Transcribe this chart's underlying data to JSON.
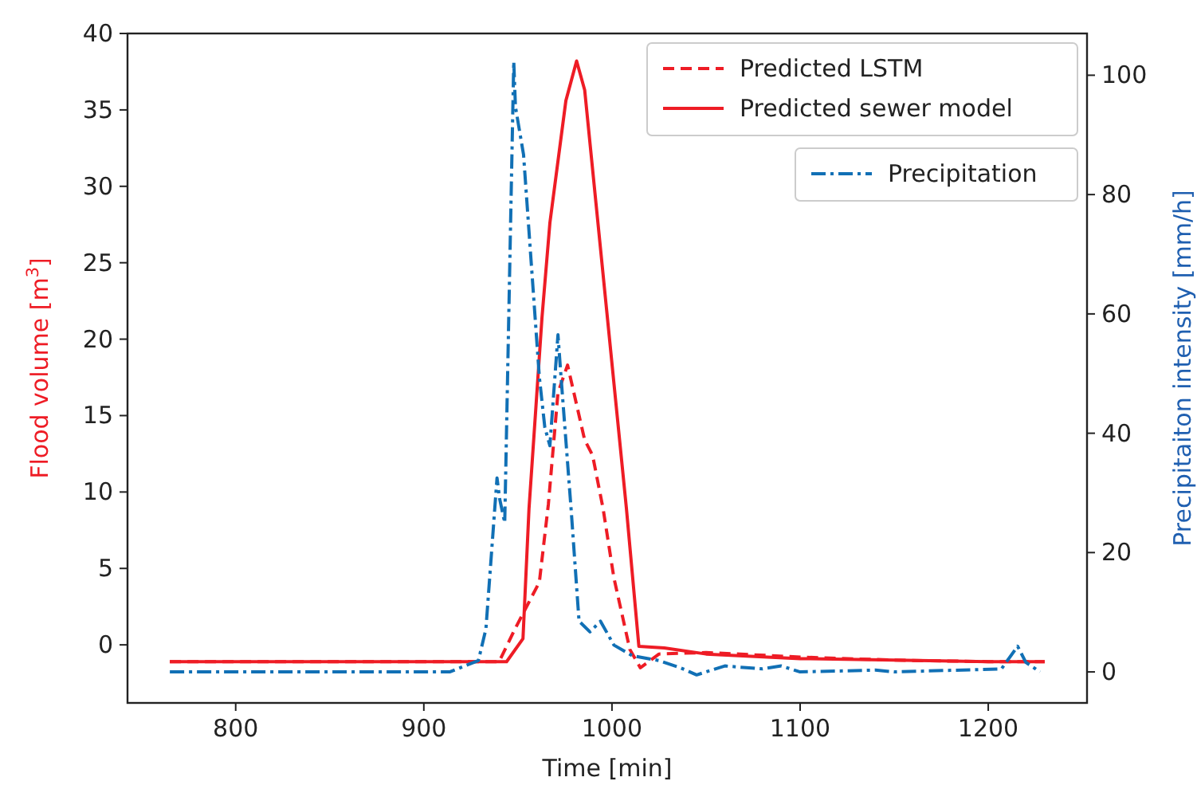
{
  "chart_data": {
    "type": "line",
    "xlabel": "Time [min]",
    "ylabel": "Flood volume [m$^{3}$]",
    "y2label": "Precipitaiton intensity [mm/h]",
    "xlim": [
      742.5,
      1252.5
    ],
    "xticks": [
      800,
      900,
      1000,
      1100,
      1200
    ],
    "ylim": [
      -3.8,
      40
    ],
    "yticks": [
      0,
      5,
      10,
      15,
      20,
      25,
      30,
      35,
      40
    ],
    "y2lim": [
      -5.2,
      107
    ],
    "y2ticks": [
      0,
      20,
      40,
      60,
      80,
      100
    ],
    "grid": false,
    "legend": "top right",
    "series": [
      {
        "name": "Predicted LSTM",
        "color": "#ee1c25",
        "line_style": "dashed",
        "x": [
          765,
          850,
          900,
          940,
          948.7,
          961.4,
          966.2,
          971.3,
          976.4,
          985.5,
          989.7,
          995.3,
          1001,
          1009.5,
          1015.1,
          1025,
          1050,
          1100,
          1150,
          1200,
          1230
        ],
        "values": [
          -1.1,
          -1.1,
          -1.1,
          -1.1,
          1.1,
          4.1,
          9.2,
          16.5,
          18.3,
          13.4,
          12.4,
          8.9,
          4.4,
          -0.3,
          -1.5,
          -0.6,
          -0.5,
          -0.8,
          -1.0,
          -1.1,
          -1.1
        ]
      },
      {
        "name": "Predicted sewer model",
        "color": "#ee1c25",
        "line_style": "solid",
        "x": [
          765,
          850,
          900,
          944,
          952.7,
          955.9,
          962.8,
          967,
          975.5,
          981.2,
          985.5,
          1007.7,
          1014.3,
          1027.8,
          1050,
          1100,
          1150,
          1200,
          1230
        ],
        "values": [
          -1.1,
          -1.1,
          -1.1,
          -1.1,
          0.4,
          8.9,
          21.4,
          27.6,
          35.6,
          38.2,
          36.3,
          8.9,
          -0.1,
          -0.2,
          -0.6,
          -0.9,
          -1.0,
          -1.1,
          -1.1
        ]
      },
      {
        "name": "Precipitation",
        "color": "#1170b5",
        "line_style": "dotted",
        "axis": "y2",
        "x": [
          765,
          850,
          913.7,
          929,
          933,
          938.9,
          940.3,
          943,
          947.8,
          948.7,
          953,
          961.4,
          964.3,
          967,
          971.3,
          972.7,
          978.3,
          982.5,
          988.3,
          993.9,
          1001,
          1010.9,
          1024.9,
          1036.3,
          1045,
          1060,
          1080,
          1090,
          1100,
          1140,
          1150,
          1207,
          1215.6,
          1220,
          1227.5
        ],
        "values": [
          0,
          0,
          0,
          1.9,
          7.2,
          32.5,
          29,
          25,
          102.3,
          94.7,
          86.7,
          49.4,
          41,
          37.9,
          56.5,
          50.4,
          27.2,
          8.5,
          6.7,
          8.5,
          4.5,
          2.7,
          1.9,
          0.7,
          -0.5,
          1,
          0.5,
          1,
          0,
          0.3,
          0,
          0.5,
          4.3,
          1.6,
          0
        ]
      }
    ]
  }
}
